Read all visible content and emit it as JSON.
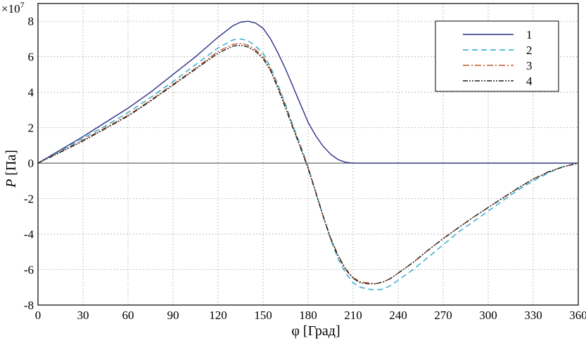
{
  "chart_data": {
    "type": "line",
    "xlabel": "φ [Град]",
    "ylabel_main": "P",
    "ylabel_unit": " [Па]",
    "y_multiplier": "×10",
    "y_multiplier_exp": "7",
    "xlim": [
      0,
      360
    ],
    "ylim": [
      -8,
      9
    ],
    "xticks": [
      0,
      30,
      60,
      90,
      120,
      150,
      180,
      210,
      240,
      270,
      300,
      330,
      360
    ],
    "yticks": [
      -8,
      -6,
      -4,
      -2,
      0,
      2,
      4,
      6,
      8
    ],
    "grid": true,
    "legend_position": "top-right",
    "series": [
      {
        "name": "1",
        "color": "#2c2f86",
        "dash": "",
        "x": [
          0,
          15,
          30,
          45,
          60,
          75,
          90,
          105,
          120,
          130,
          135,
          140,
          145,
          150,
          155,
          160,
          165,
          170,
          175,
          180,
          185,
          190,
          195,
          200,
          205,
          210,
          220,
          360
        ],
        "y": [
          0,
          0.75,
          1.5,
          2.3,
          3.1,
          4.0,
          5.0,
          6.0,
          7.1,
          7.75,
          7.95,
          8.0,
          7.9,
          7.6,
          7.0,
          6.2,
          5.3,
          4.3,
          3.3,
          2.3,
          1.55,
          0.95,
          0.5,
          0.2,
          0.05,
          0,
          0,
          0
        ]
      },
      {
        "name": "2",
        "color": "#29a6cf",
        "dash": "8,5",
        "x": [
          0,
          15,
          30,
          45,
          60,
          75,
          90,
          105,
          120,
          130,
          135,
          140,
          145,
          150,
          155,
          160,
          165,
          170,
          175,
          180,
          185,
          190,
          195,
          200,
          205,
          210,
          215,
          220,
          225,
          230,
          235,
          240,
          250,
          260,
          270,
          280,
          290,
          300,
          310,
          320,
          330,
          340,
          350,
          360
        ],
        "y": [
          0,
          0.7,
          1.4,
          2.1,
          2.85,
          3.7,
          4.6,
          5.55,
          6.5,
          6.95,
          7.0,
          6.9,
          6.6,
          6.2,
          5.4,
          4.4,
          3.3,
          2.1,
          1.0,
          -0.2,
          -1.6,
          -3.0,
          -4.3,
          -5.4,
          -6.2,
          -6.75,
          -7.0,
          -7.1,
          -7.15,
          -7.1,
          -6.9,
          -6.6,
          -6.0,
          -5.3,
          -4.6,
          -3.9,
          -3.3,
          -2.7,
          -2.1,
          -1.5,
          -1.0,
          -0.55,
          -0.2,
          0
        ]
      },
      {
        "name": "3",
        "color": "#c05a2a",
        "dash": "9,3,2,3",
        "x": [
          0,
          15,
          30,
          45,
          60,
          75,
          90,
          105,
          120,
          130,
          135,
          140,
          145,
          150,
          155,
          160,
          165,
          170,
          175,
          180,
          185,
          190,
          195,
          200,
          205,
          210,
          215,
          220,
          225,
          230,
          235,
          240,
          250,
          260,
          270,
          280,
          290,
          300,
          310,
          320,
          330,
          340,
          350,
          360
        ],
        "y": [
          0,
          0.65,
          1.3,
          2.0,
          2.7,
          3.55,
          4.45,
          5.35,
          6.3,
          6.7,
          6.75,
          6.65,
          6.4,
          6.0,
          5.3,
          4.3,
          3.2,
          2.0,
          0.9,
          -0.25,
          -1.6,
          -2.95,
          -4.2,
          -5.2,
          -5.95,
          -6.45,
          -6.7,
          -6.75,
          -6.8,
          -6.7,
          -6.5,
          -6.2,
          -5.6,
          -4.9,
          -4.25,
          -3.65,
          -3.05,
          -2.5,
          -1.95,
          -1.4,
          -0.9,
          -0.5,
          -0.2,
          0
        ]
      },
      {
        "name": "4",
        "color": "#1e1e1e",
        "dash": "7,2,2,2,2,2",
        "x": [
          0,
          15,
          30,
          45,
          60,
          75,
          90,
          105,
          120,
          130,
          135,
          140,
          145,
          150,
          155,
          160,
          165,
          170,
          175,
          180,
          185,
          190,
          195,
          200,
          205,
          210,
          215,
          220,
          225,
          230,
          235,
          240,
          250,
          260,
          270,
          280,
          290,
          300,
          310,
          320,
          330,
          340,
          350,
          360
        ],
        "y": [
          0,
          0.62,
          1.25,
          1.95,
          2.65,
          3.5,
          4.4,
          5.3,
          6.2,
          6.6,
          6.65,
          6.55,
          6.3,
          5.9,
          5.2,
          4.2,
          3.1,
          1.95,
          0.85,
          -0.3,
          -1.65,
          -3.0,
          -4.25,
          -5.25,
          -6.0,
          -6.5,
          -6.75,
          -6.8,
          -6.8,
          -6.7,
          -6.5,
          -6.2,
          -5.6,
          -4.9,
          -4.25,
          -3.65,
          -3.05,
          -2.5,
          -1.95,
          -1.4,
          -0.9,
          -0.5,
          -0.2,
          0
        ]
      }
    ]
  }
}
